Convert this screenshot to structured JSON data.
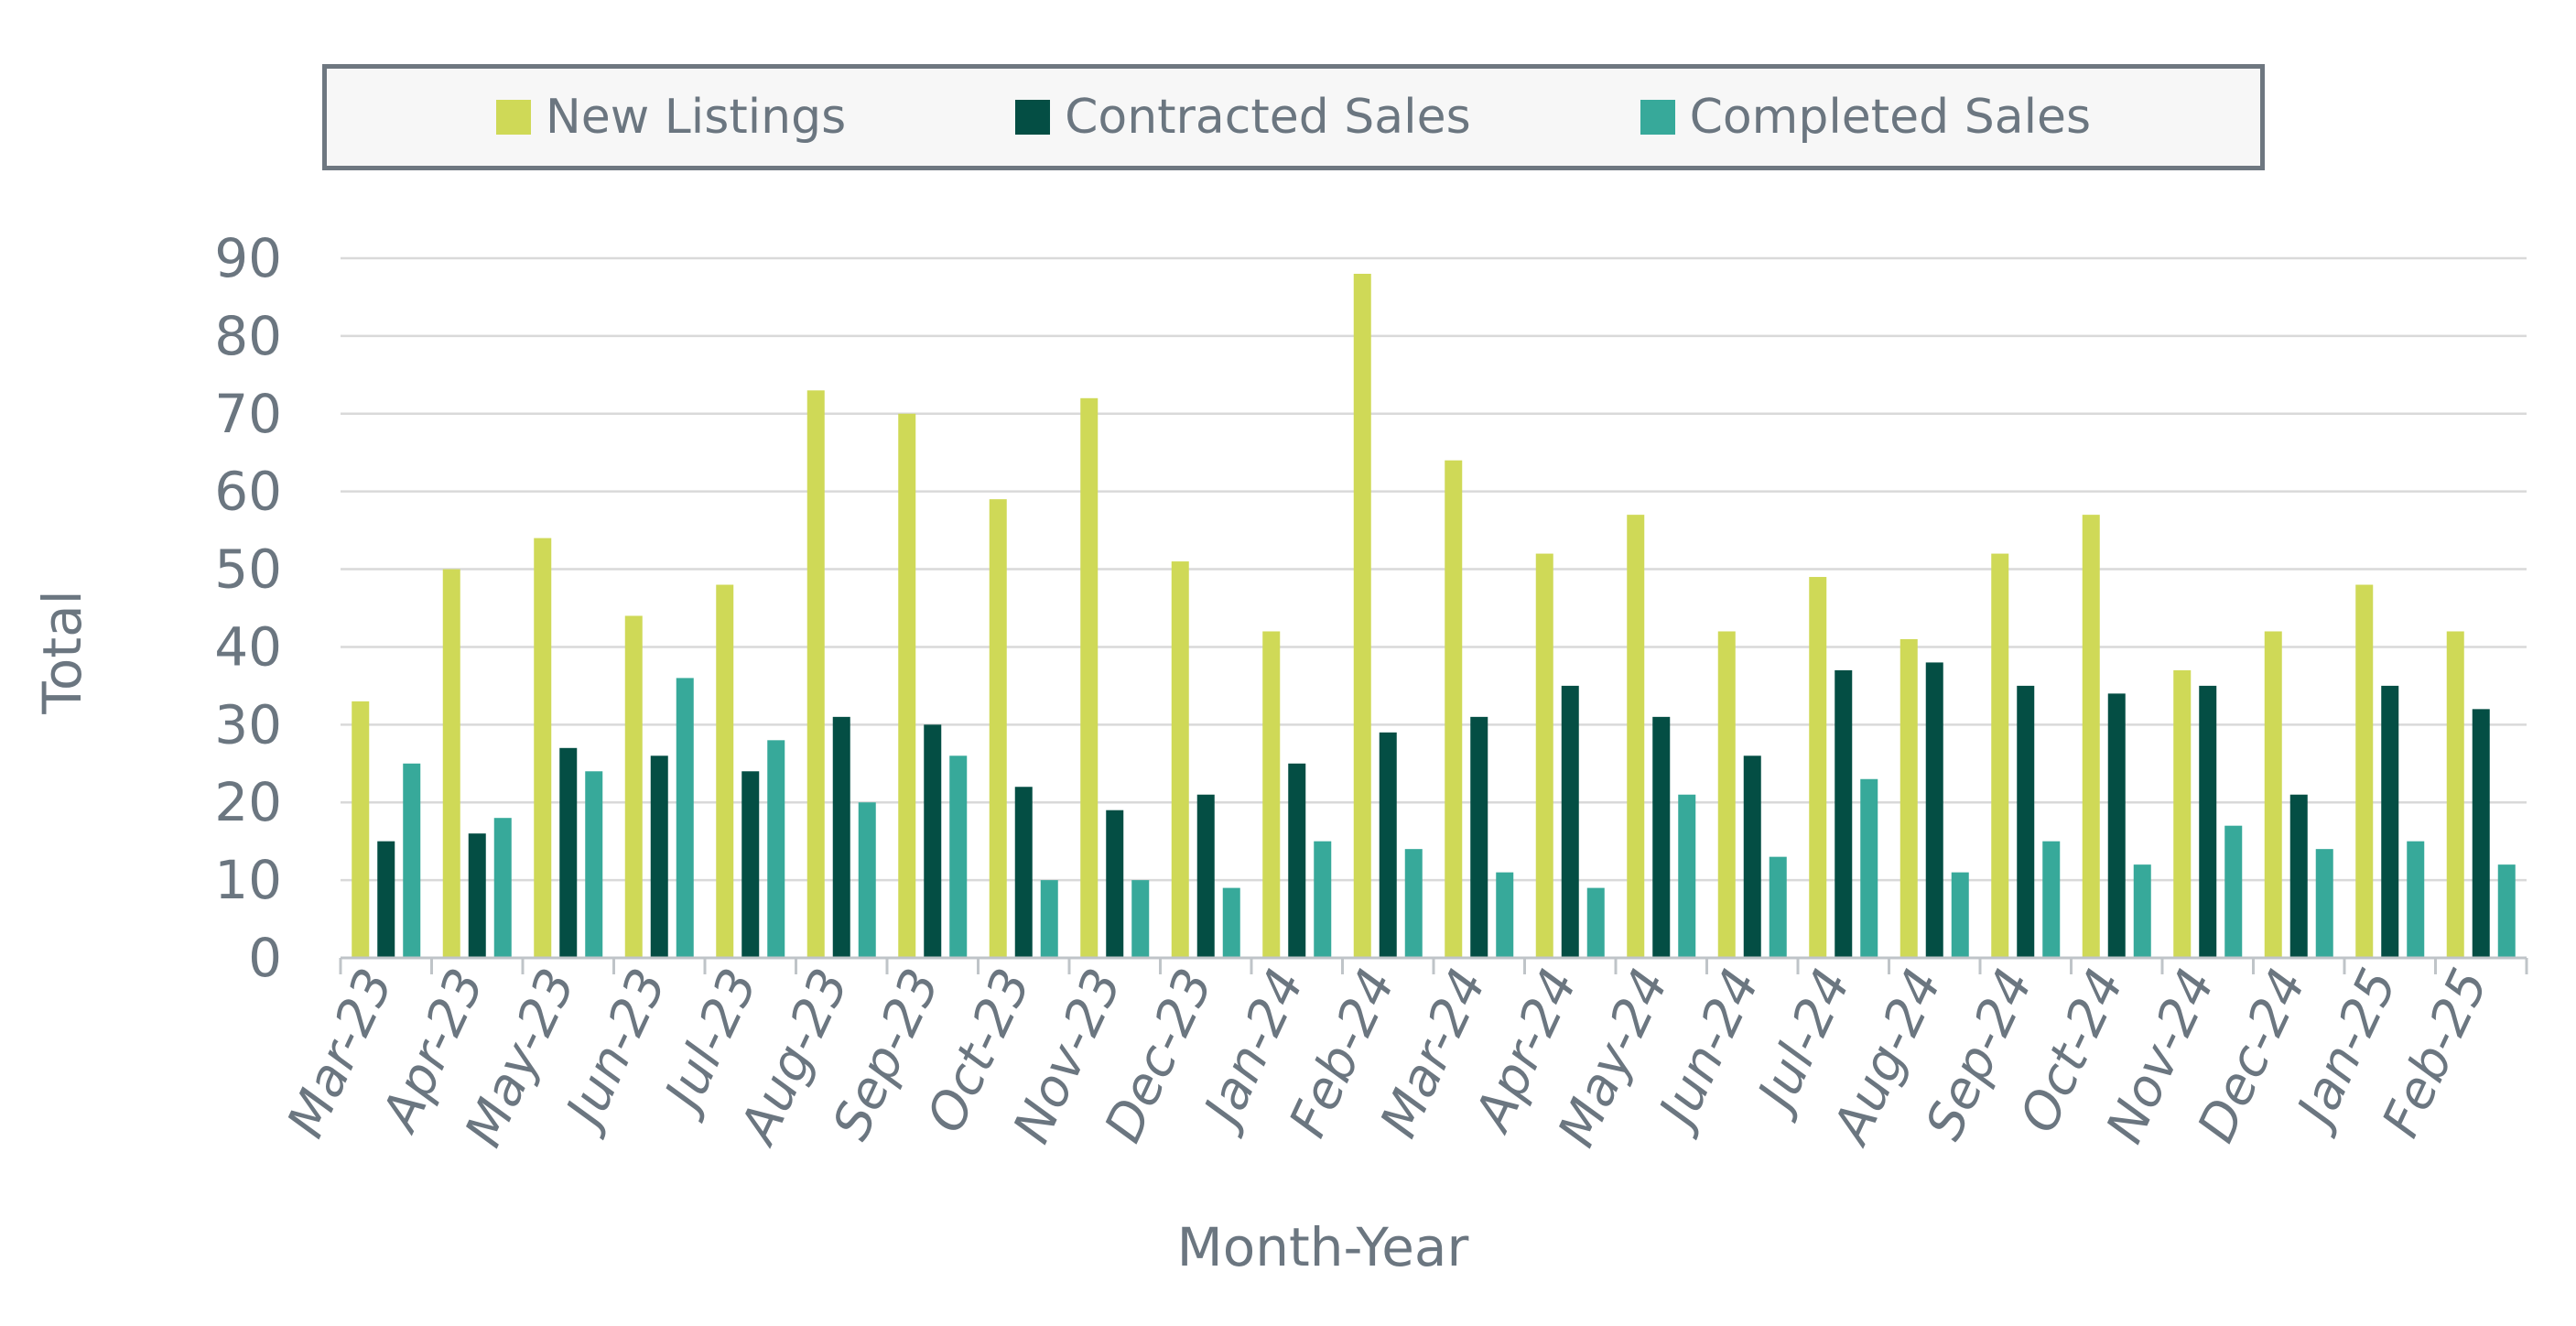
{
  "chart_data": {
    "type": "bar",
    "xlabel": "Month-Year",
    "ylabel": "Total",
    "ylim": [
      0,
      90
    ],
    "yticks": [
      0,
      10,
      20,
      30,
      40,
      50,
      60,
      70,
      80,
      90
    ],
    "grid": true,
    "legend_position": "top",
    "categories": [
      "Mar-23",
      "Apr-23",
      "May-23",
      "Jun-23",
      "Jul-23",
      "Aug-23",
      "Sep-23",
      "Oct-23",
      "Nov-23",
      "Dec-23",
      "Jan-24",
      "Feb-24",
      "Mar-24",
      "Apr-24",
      "May-24",
      "Jun-24",
      "Jul-24",
      "Aug-24",
      "Sep-24",
      "Oct-24",
      "Nov-24",
      "Dec-24",
      "Jan-25",
      "Feb-25"
    ],
    "series": [
      {
        "name": "New Listings",
        "color": "#cfd957",
        "values": [
          33,
          50,
          54,
          44,
          48,
          73,
          70,
          59,
          72,
          51,
          42,
          88,
          64,
          52,
          57,
          42,
          49,
          41,
          52,
          57,
          37,
          42,
          48,
          42
        ]
      },
      {
        "name": "Contracted Sales",
        "color": "#044e44",
        "values": [
          15,
          16,
          27,
          26,
          24,
          31,
          30,
          22,
          19,
          21,
          25,
          29,
          31,
          35,
          31,
          26,
          37,
          38,
          35,
          34,
          35,
          21,
          35,
          32
        ]
      },
      {
        "name": "Completed Sales",
        "color": "#37a99a",
        "values": [
          25,
          18,
          24,
          36,
          28,
          20,
          26,
          10,
          10,
          9,
          15,
          14,
          11,
          9,
          21,
          13,
          23,
          11,
          15,
          12,
          17,
          14,
          15,
          12
        ]
      }
    ]
  }
}
